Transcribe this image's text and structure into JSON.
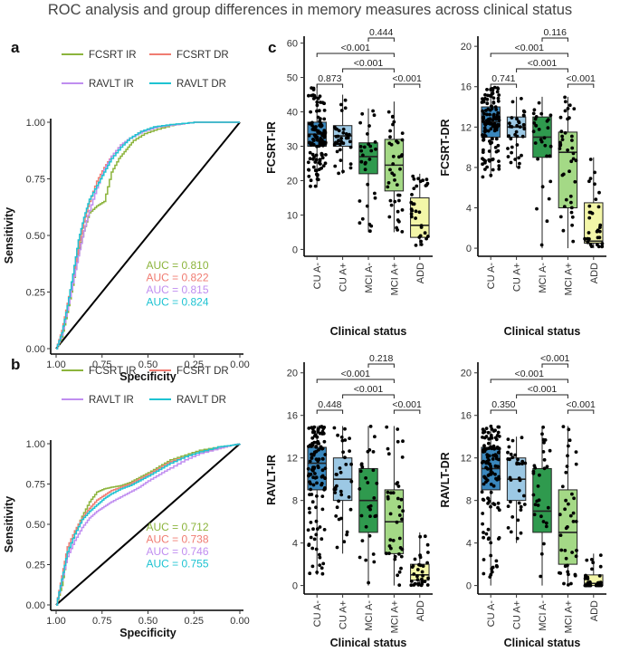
{
  "figure_title": "ROC analysis and group differences in memory measures across clinical status",
  "colors": {
    "fcsrt_ir": "#8cb43c",
    "fcsrt_dr": "#f07c72",
    "ravlt_ir": "#c08ef0",
    "ravlt_dr": "#1ec3d2",
    "cu_neg": "#3a87bd",
    "cu_pos": "#9cc8e4",
    "mci_neg": "#2f9a4e",
    "mci_pos": "#a4d986",
    "add": "#f3f6a8"
  },
  "chart_data": [
    {
      "type": "line",
      "panel": "a",
      "xlabel": "Specificity",
      "ylabel": "Sensitivity",
      "xlim": [
        1.0,
        0.0
      ],
      "ylim": [
        0.0,
        1.0
      ],
      "x_ticks": [
        "1.00",
        "0.75",
        "0.50",
        "0.25",
        "0.00"
      ],
      "y_ticks": [
        "0.00",
        "0.25",
        "0.50",
        "0.75",
        "1.00"
      ],
      "legend": [
        "FCSRT IR",
        "FCSRT DR",
        "RAVLT IR",
        "RAVLT DR"
      ],
      "series": [
        {
          "name": "FCSRT IR",
          "color_key": "fcsrt_ir",
          "auc_label": "AUC = 0.810",
          "points": [
            [
              1.0,
              0.0
            ],
            [
              0.97,
              0.05
            ],
            [
              0.94,
              0.16
            ],
            [
              0.91,
              0.28
            ],
            [
              0.88,
              0.42
            ],
            [
              0.85,
              0.52
            ],
            [
              0.82,
              0.6
            ],
            [
              0.78,
              0.63
            ],
            [
              0.74,
              0.65
            ],
            [
              0.7,
              0.78
            ],
            [
              0.66,
              0.84
            ],
            [
              0.62,
              0.88
            ],
            [
              0.58,
              0.92
            ],
            [
              0.52,
              0.95
            ],
            [
              0.45,
              0.97
            ],
            [
              0.36,
              0.99
            ],
            [
              0.25,
              1.0
            ],
            [
              0.0,
              1.0
            ]
          ]
        },
        {
          "name": "FCSRT DR",
          "color_key": "fcsrt_dr",
          "auc_label": "AUC = 0.822",
          "points": [
            [
              1.0,
              0.0
            ],
            [
              0.97,
              0.08
            ],
            [
              0.94,
              0.2
            ],
            [
              0.91,
              0.32
            ],
            [
              0.88,
              0.45
            ],
            [
              0.85,
              0.56
            ],
            [
              0.82,
              0.65
            ],
            [
              0.78,
              0.74
            ],
            [
              0.74,
              0.8
            ],
            [
              0.7,
              0.85
            ],
            [
              0.65,
              0.9
            ],
            [
              0.6,
              0.93
            ],
            [
              0.54,
              0.96
            ],
            [
              0.46,
              0.98
            ],
            [
              0.35,
              0.99
            ],
            [
              0.25,
              1.0
            ],
            [
              0.0,
              1.0
            ]
          ]
        },
        {
          "name": "RAVLT IR",
          "color_key": "ravlt_ir",
          "auc_label": "AUC = 0.815",
          "points": [
            [
              1.0,
              0.0
            ],
            [
              0.97,
              0.06
            ],
            [
              0.94,
              0.17
            ],
            [
              0.91,
              0.29
            ],
            [
              0.88,
              0.41
            ],
            [
              0.85,
              0.52
            ],
            [
              0.82,
              0.61
            ],
            [
              0.78,
              0.71
            ],
            [
              0.74,
              0.79
            ],
            [
              0.7,
              0.85
            ],
            [
              0.65,
              0.9
            ],
            [
              0.6,
              0.93
            ],
            [
              0.53,
              0.96
            ],
            [
              0.45,
              0.98
            ],
            [
              0.35,
              0.99
            ],
            [
              0.25,
              1.0
            ],
            [
              0.0,
              1.0
            ]
          ]
        },
        {
          "name": "RAVLT DR",
          "color_key": "ravlt_dr",
          "auc_label": "AUC = 0.824",
          "points": [
            [
              1.0,
              0.0
            ],
            [
              0.97,
              0.07
            ],
            [
              0.94,
              0.19
            ],
            [
              0.91,
              0.33
            ],
            [
              0.88,
              0.48
            ],
            [
              0.85,
              0.58
            ],
            [
              0.82,
              0.66
            ],
            [
              0.78,
              0.72
            ],
            [
              0.74,
              0.78
            ],
            [
              0.7,
              0.84
            ],
            [
              0.65,
              0.89
            ],
            [
              0.6,
              0.93
            ],
            [
              0.54,
              0.96
            ],
            [
              0.47,
              0.98
            ],
            [
              0.38,
              0.99
            ],
            [
              0.25,
              1.0
            ],
            [
              0.0,
              1.0
            ]
          ]
        }
      ]
    },
    {
      "type": "line",
      "panel": "b",
      "xlabel": "Specificity",
      "ylabel": "Sensitivity",
      "xlim": [
        1.0,
        0.0
      ],
      "ylim": [
        0.0,
        1.0
      ],
      "x_ticks": [
        "1.00",
        "0.75",
        "0.50",
        "0.25",
        "0.00"
      ],
      "y_ticks": [
        "0.00",
        "0.25",
        "0.50",
        "0.75",
        "1.00"
      ],
      "legend": [
        "FCSRT IR",
        "FCSRT DR",
        "RAVLT IR",
        "RAVLT DR"
      ],
      "series": [
        {
          "name": "FCSRT IR",
          "color_key": "fcsrt_ir",
          "auc_label": "AUC = 0.712",
          "points": [
            [
              1.0,
              0.0
            ],
            [
              0.97,
              0.12
            ],
            [
              0.94,
              0.32
            ],
            [
              0.9,
              0.45
            ],
            [
              0.86,
              0.55
            ],
            [
              0.82,
              0.64
            ],
            [
              0.78,
              0.7
            ],
            [
              0.74,
              0.72
            ],
            [
              0.7,
              0.73
            ],
            [
              0.65,
              0.74
            ],
            [
              0.6,
              0.76
            ],
            [
              0.55,
              0.79
            ],
            [
              0.5,
              0.82
            ],
            [
              0.44,
              0.86
            ],
            [
              0.38,
              0.9
            ],
            [
              0.3,
              0.93
            ],
            [
              0.22,
              0.96
            ],
            [
              0.12,
              0.98
            ],
            [
              0.05,
              0.99
            ],
            [
              0.0,
              1.0
            ]
          ]
        },
        {
          "name": "FCSRT DR",
          "color_key": "fcsrt_dr",
          "auc_label": "AUC = 0.738",
          "points": [
            [
              1.0,
              0.0
            ],
            [
              0.97,
              0.18
            ],
            [
              0.94,
              0.36
            ],
            [
              0.9,
              0.46
            ],
            [
              0.86,
              0.54
            ],
            [
              0.82,
              0.6
            ],
            [
              0.78,
              0.65
            ],
            [
              0.74,
              0.68
            ],
            [
              0.7,
              0.71
            ],
            [
              0.65,
              0.73
            ],
            [
              0.6,
              0.75
            ],
            [
              0.55,
              0.78
            ],
            [
              0.5,
              0.81
            ],
            [
              0.44,
              0.85
            ],
            [
              0.38,
              0.89
            ],
            [
              0.3,
              0.92
            ],
            [
              0.22,
              0.95
            ],
            [
              0.12,
              0.97
            ],
            [
              0.05,
              0.99
            ],
            [
              0.0,
              1.0
            ]
          ]
        },
        {
          "name": "RAVLT IR",
          "color_key": "ravlt_ir",
          "auc_label": "AUC = 0.746",
          "points": [
            [
              1.0,
              0.0
            ],
            [
              0.97,
              0.15
            ],
            [
              0.94,
              0.3
            ],
            [
              0.9,
              0.4
            ],
            [
              0.86,
              0.48
            ],
            [
              0.82,
              0.54
            ],
            [
              0.78,
              0.58
            ],
            [
              0.74,
              0.61
            ],
            [
              0.7,
              0.64
            ],
            [
              0.65,
              0.67
            ],
            [
              0.6,
              0.7
            ],
            [
              0.55,
              0.73
            ],
            [
              0.5,
              0.77
            ],
            [
              0.44,
              0.81
            ],
            [
              0.38,
              0.85
            ],
            [
              0.3,
              0.9
            ],
            [
              0.22,
              0.94
            ],
            [
              0.12,
              0.97
            ],
            [
              0.05,
              0.99
            ],
            [
              0.0,
              1.0
            ]
          ]
        },
        {
          "name": "RAVLT DR",
          "color_key": "ravlt_dr",
          "auc_label": "AUC = 0.755",
          "points": [
            [
              1.0,
              0.0
            ],
            [
              0.97,
              0.16
            ],
            [
              0.94,
              0.33
            ],
            [
              0.9,
              0.44
            ],
            [
              0.86,
              0.53
            ],
            [
              0.82,
              0.58
            ],
            [
              0.78,
              0.62
            ],
            [
              0.74,
              0.66
            ],
            [
              0.7,
              0.69
            ],
            [
              0.65,
              0.72
            ],
            [
              0.6,
              0.74
            ],
            [
              0.55,
              0.77
            ],
            [
              0.5,
              0.8
            ],
            [
              0.44,
              0.84
            ],
            [
              0.38,
              0.88
            ],
            [
              0.3,
              0.92
            ],
            [
              0.22,
              0.95
            ],
            [
              0.12,
              0.98
            ],
            [
              0.05,
              0.99
            ],
            [
              0.0,
              1.0
            ]
          ]
        }
      ]
    },
    {
      "type": "box",
      "panel": "c",
      "ylabel": "FCSRT-IR",
      "xlabel": "Clinical status",
      "ylim": [
        -2,
        62
      ],
      "y_ticks": [
        0,
        10,
        20,
        30,
        40,
        50,
        60
      ],
      "categories": [
        "CU A-",
        "CU A+",
        "MCI A-",
        "MCI A+",
        "ADD"
      ],
      "boxes": [
        {
          "q1": 30,
          "median": 33.5,
          "q3": 37,
          "min": 18,
          "max": 48,
          "n": 120
        },
        {
          "q1": 30,
          "median": 33,
          "q3": 36,
          "min": 22,
          "max": 45,
          "n": 35
        },
        {
          "q1": 22,
          "median": 27,
          "q3": 31,
          "min": 5,
          "max": 41,
          "n": 30
        },
        {
          "q1": 17,
          "median": 24.5,
          "q3": 32,
          "min": 5,
          "max": 43,
          "n": 40
        },
        {
          "q1": 3.5,
          "median": 7,
          "q3": 15,
          "min": 1,
          "max": 22,
          "n": 32
        }
      ],
      "comparisons": [
        {
          "g1": 0,
          "g2": 3,
          "label": "<0.001",
          "level": 3
        },
        {
          "g1": 2,
          "g2": 3,
          "label": "0.444",
          "level": 4
        },
        {
          "g1": 0,
          "g2": 1,
          "label": "0.873",
          "level": 1
        },
        {
          "g1": 1,
          "g2": 3,
          "label": "<0.001",
          "level": 2
        },
        {
          "g1": 3,
          "g2": 4,
          "label": "<0.001",
          "level": 1
        }
      ]
    },
    {
      "type": "box",
      "panel": "c",
      "ylabel": "FCSRT-DR",
      "xlabel": "Clinical status",
      "ylim": [
        -0.8,
        21
      ],
      "y_ticks": [
        0,
        4,
        8,
        12,
        16,
        20
      ],
      "categories": [
        "CU A-",
        "CU A+",
        "MCI A-",
        "MCI A+",
        "ADD"
      ],
      "boxes": [
        {
          "q1": 11,
          "median": 12.5,
          "q3": 14,
          "min": 7,
          "max": 16,
          "n": 120
        },
        {
          "q1": 11,
          "median": 12,
          "q3": 13,
          "min": 8,
          "max": 15,
          "n": 35
        },
        {
          "q1": 9,
          "median": 11,
          "q3": 13,
          "min": 0,
          "max": 15,
          "n": 30
        },
        {
          "q1": 4,
          "median": 9.5,
          "q3": 11.5,
          "min": 0,
          "max": 15,
          "n": 40
        },
        {
          "q1": 0.5,
          "median": 0.7,
          "q3": 4.5,
          "min": 0,
          "max": 9,
          "n": 32
        }
      ],
      "comparisons": [
        {
          "g1": 0,
          "g2": 3,
          "label": "<0.001",
          "level": 3
        },
        {
          "g1": 2,
          "g2": 3,
          "label": "0.116",
          "level": 4
        },
        {
          "g1": 0,
          "g2": 1,
          "label": "0.741",
          "level": 1
        },
        {
          "g1": 1,
          "g2": 3,
          "label": "<0.001",
          "level": 2
        },
        {
          "g1": 3,
          "g2": 4,
          "label": "<0.001",
          "level": 1
        }
      ]
    },
    {
      "type": "box",
      "panel": "c",
      "ylabel": "RAVLT-IR",
      "xlabel": "Clinical status",
      "ylim": [
        -0.8,
        21
      ],
      "y_ticks": [
        0,
        4,
        8,
        12,
        16,
        20
      ],
      "categories": [
        "CU A-",
        "CU A+",
        "MCI A-",
        "MCI A+",
        "ADD"
      ],
      "boxes": [
        {
          "q1": 9,
          "median": 11.5,
          "q3": 13,
          "min": 1,
          "max": 15,
          "n": 120
        },
        {
          "q1": 8,
          "median": 10,
          "q3": 12,
          "min": 3,
          "max": 15,
          "n": 35
        },
        {
          "q1": 5,
          "median": 8,
          "q3": 11,
          "min": 0,
          "max": 15,
          "n": 30
        },
        {
          "q1": 3,
          "median": 6,
          "q3": 9,
          "min": 0,
          "max": 15,
          "n": 40
        },
        {
          "q1": 0.5,
          "median": 1,
          "q3": 2,
          "min": 0,
          "max": 5,
          "n": 32
        }
      ],
      "comparisons": [
        {
          "g1": 0,
          "g2": 3,
          "label": "<0.001",
          "level": 3
        },
        {
          "g1": 2,
          "g2": 3,
          "label": "0.218",
          "level": 4
        },
        {
          "g1": 0,
          "g2": 1,
          "label": "0.448",
          "level": 1
        },
        {
          "g1": 1,
          "g2": 3,
          "label": "<0.001",
          "level": 2
        },
        {
          "g1": 3,
          "g2": 4,
          "label": "<0.001",
          "level": 1
        }
      ]
    },
    {
      "type": "box",
      "panel": "c",
      "ylabel": "RAVLT-DR",
      "xlabel": "Clinical status",
      "ylim": [
        -0.8,
        21
      ],
      "y_ticks": [
        0,
        4,
        8,
        12,
        16,
        20
      ],
      "categories": [
        "CU A-",
        "CU A+",
        "MCI A-",
        "MCI A+",
        "ADD"
      ],
      "boxes": [
        {
          "q1": 9,
          "median": 11,
          "q3": 13,
          "min": 0,
          "max": 15,
          "n": 120
        },
        {
          "q1": 8,
          "median": 10,
          "q3": 12,
          "min": 4,
          "max": 14,
          "n": 35
        },
        {
          "q1": 5,
          "median": 7,
          "q3": 11,
          "min": 0,
          "max": 15,
          "n": 30
        },
        {
          "q1": 2,
          "median": 5,
          "q3": 9,
          "min": 0,
          "max": 15,
          "n": 40
        },
        {
          "q1": 0,
          "median": 0.2,
          "q3": 1,
          "min": 0,
          "max": 3,
          "n": 32
        }
      ],
      "comparisons": [
        {
          "g1": 0,
          "g2": 3,
          "label": "<0.001",
          "level": 3
        },
        {
          "g1": 2,
          "g2": 3,
          "label": "<0.001",
          "level": 4
        },
        {
          "g1": 0,
          "g2": 1,
          "label": "0.350",
          "level": 1
        },
        {
          "g1": 1,
          "g2": 3,
          "label": "<0.001",
          "level": 2
        },
        {
          "g1": 3,
          "g2": 4,
          "label": "<0.001",
          "level": 1
        }
      ]
    }
  ],
  "panel_labels": [
    "a",
    "b",
    "c"
  ]
}
